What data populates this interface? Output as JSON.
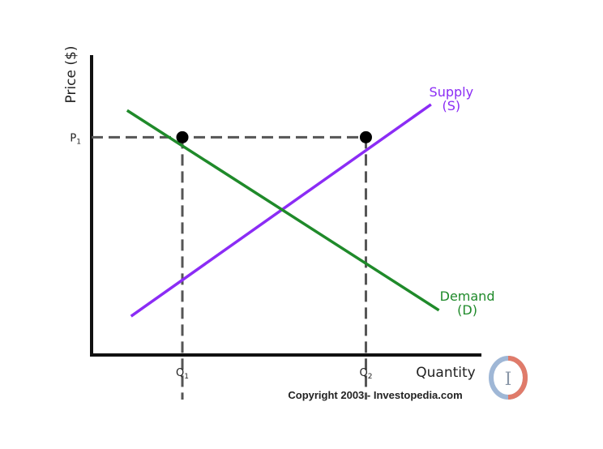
{
  "chart_data": {
    "type": "line",
    "title": "",
    "xlabel": "Quantity",
    "ylabel": "Price ($)",
    "xlim": [
      0,
      10
    ],
    "ylim": [
      0,
      10
    ],
    "grid": false,
    "legend": "none",
    "series": [
      {
        "name": "Supply (S)",
        "label_lines": [
          "Supply",
          "(S)"
        ],
        "color": "#8b2cf5",
        "x": [
          1.0,
          8.6
        ],
        "y": [
          1.3,
          8.4
        ]
      },
      {
        "name": "Demand (D)",
        "label_lines": [
          "Demand",
          "(D)"
        ],
        "color": "#1f8a2a",
        "x": [
          0.9,
          8.8
        ],
        "y": [
          8.2,
          1.5
        ]
      }
    ],
    "reference": {
      "price_label": "P",
      "price_subscript": "1",
      "price_value": 7.3,
      "quantity_labels": [
        {
          "label": "Q",
          "subscript": "1",
          "value": 2.3
        },
        {
          "label": "Q",
          "subscript": "2",
          "value": 6.95
        }
      ],
      "points": [
        {
          "x": 2.3,
          "y": 7.3
        },
        {
          "x": 6.95,
          "y": 7.3
        }
      ]
    }
  },
  "copyright": "Copyright 2003 - Investopedia.com",
  "logo": {
    "letter": "I",
    "description": "investopedia-logo"
  }
}
